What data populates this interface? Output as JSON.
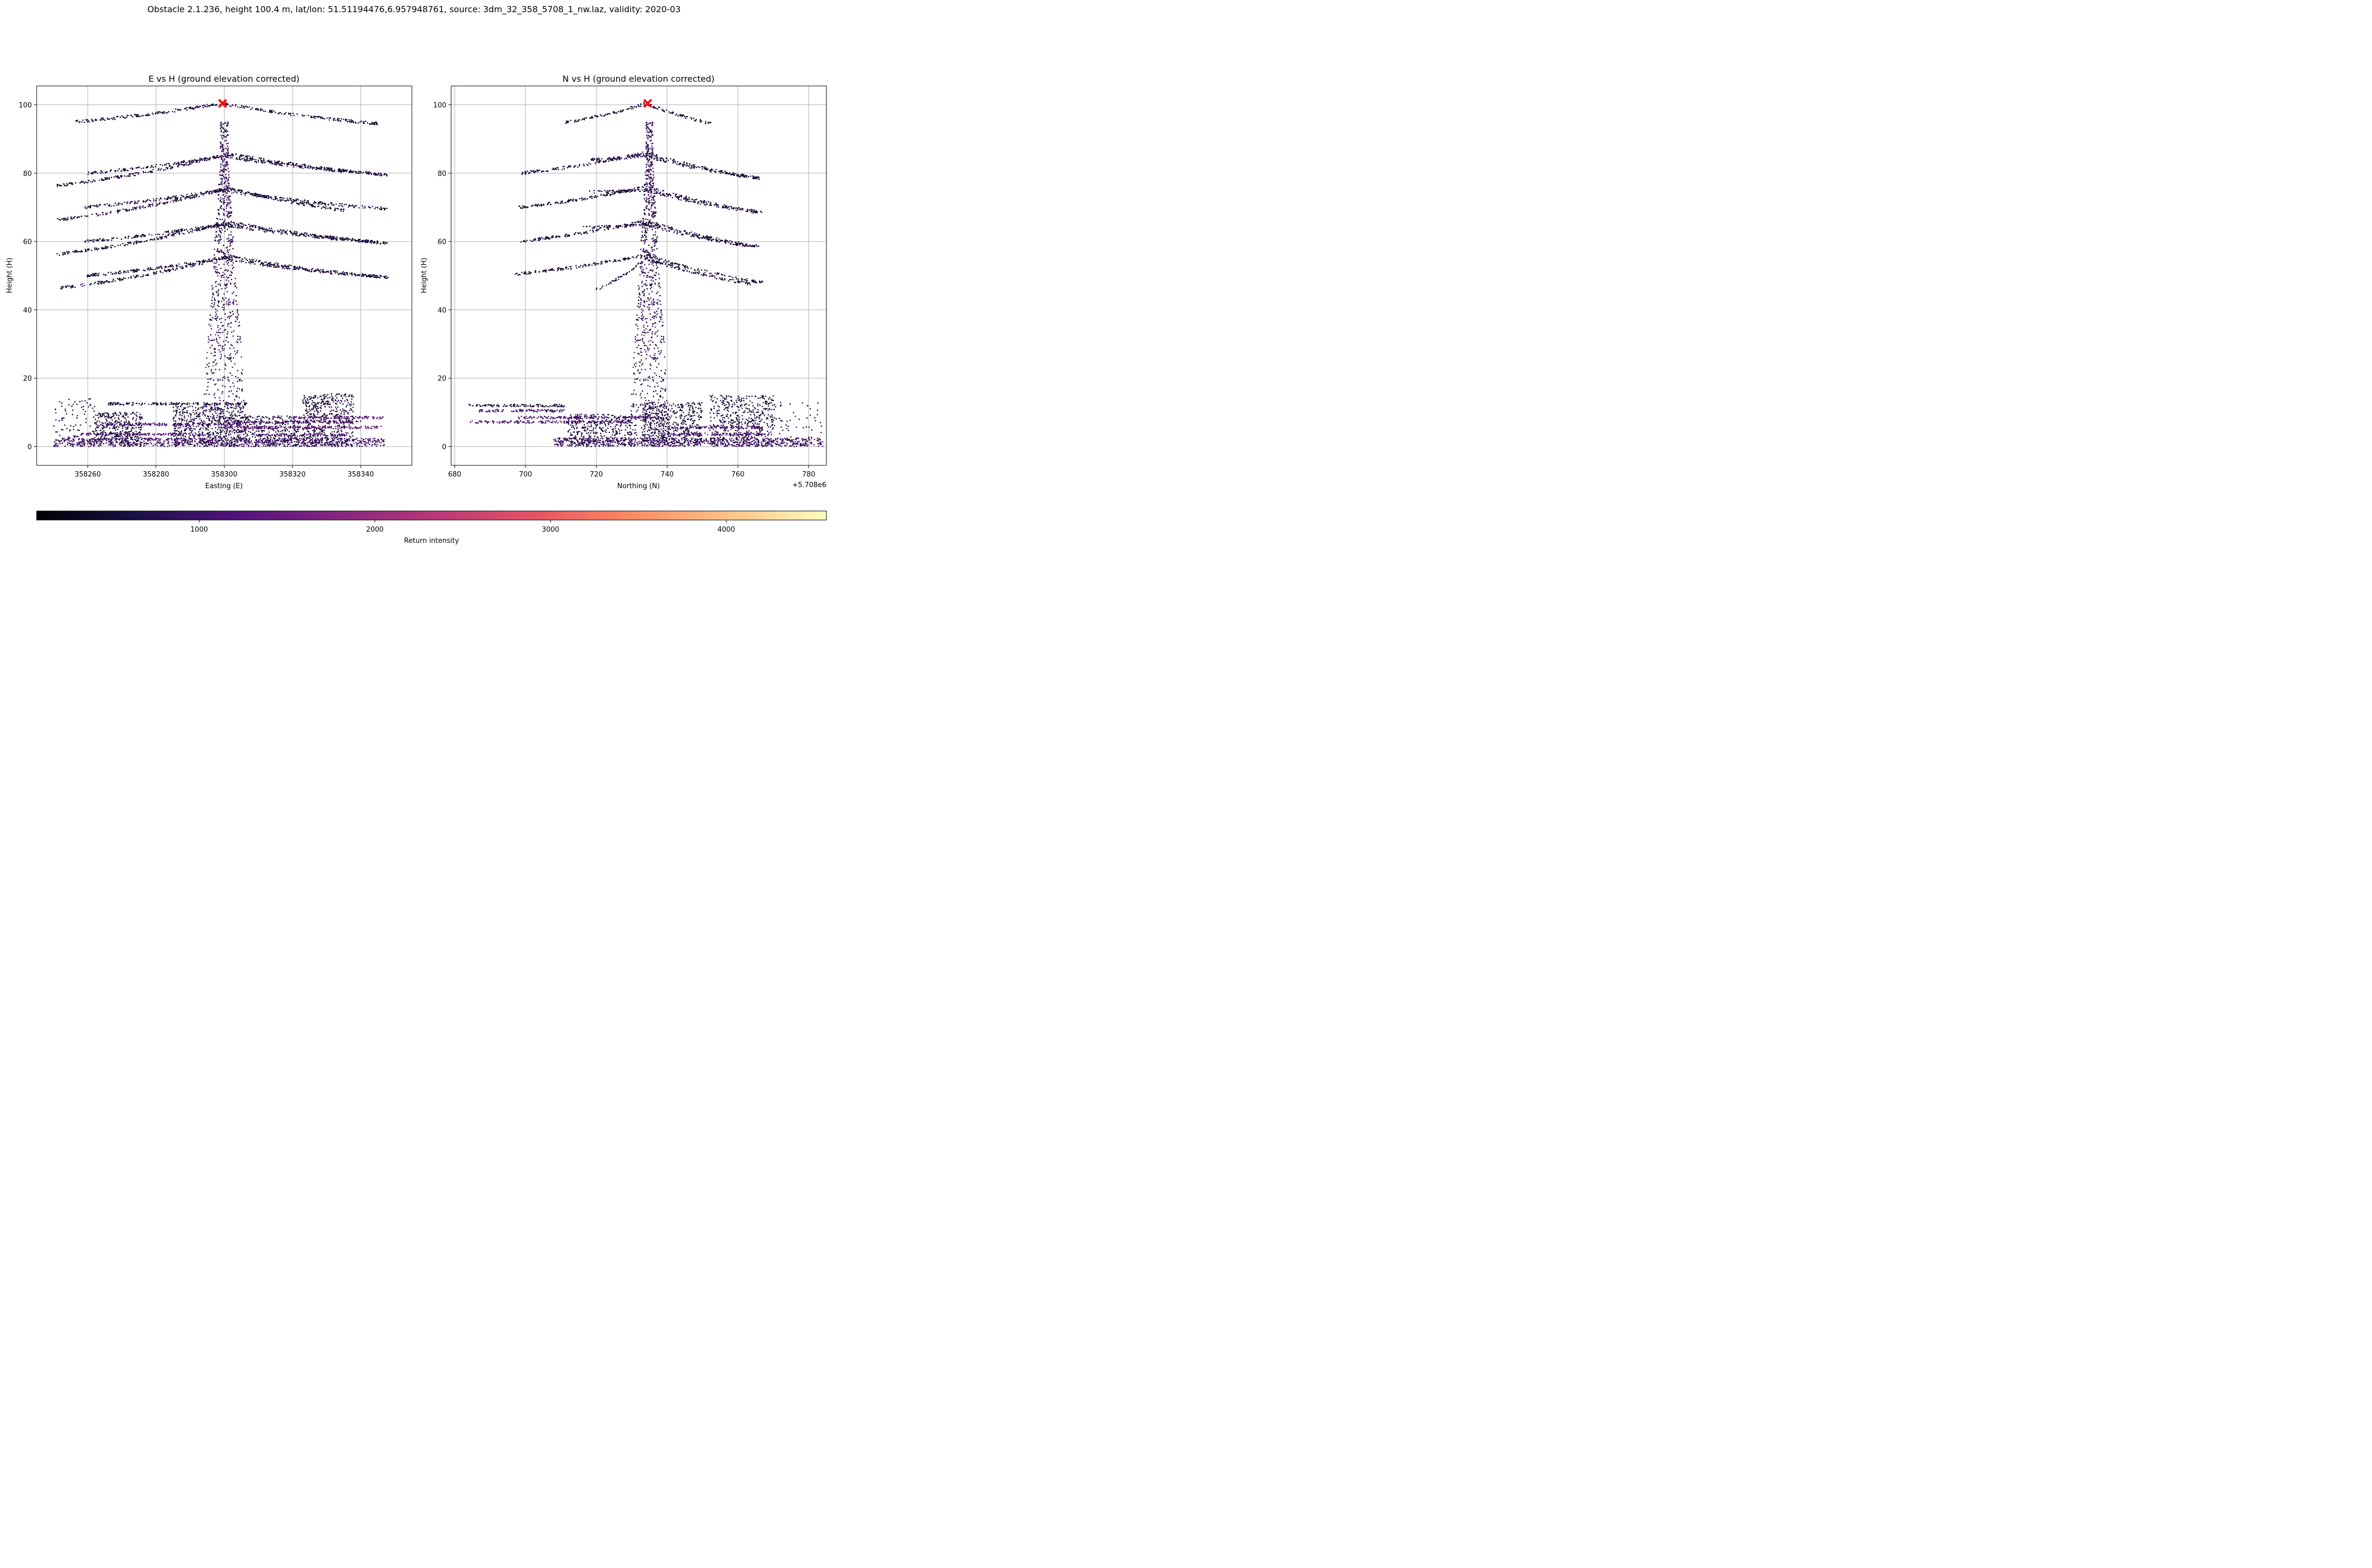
{
  "figure": {
    "suptitle": "Obstacle 2.1.236, height 100.4 m, lat/lon: 51.51194476,6.957948761, source: 3dm_32_358_5708_1_nw.laz, validity: 2020-03"
  },
  "chart_data": [
    {
      "type": "scatter",
      "title": "E vs H (ground elevation corrected)",
      "xlabel": "Easting (E)",
      "ylabel": "Height (H)",
      "xlim": [
        358245,
        358355
      ],
      "ylim": [
        -5.5,
        105.5
      ],
      "xticks": [
        358260,
        358280,
        358300,
        358320,
        358340
      ],
      "xtick_labels": [
        "358260",
        "358280",
        "358300",
        "358320",
        "358340"
      ],
      "yticks": [
        0,
        20,
        40,
        60,
        80,
        100
      ],
      "ytick_labels": [
        "0",
        "20",
        "40",
        "60",
        "80",
        "100"
      ],
      "grid": true,
      "obstacle_marker": {
        "x": 358299.5,
        "y": 100.4,
        "color": "#ff0000",
        "symbol": "x"
      },
      "tower": {
        "x_center": 358300,
        "base_half_width": 7,
        "top_half_width": 1.2,
        "y_range": [
          0,
          95
        ]
      },
      "cables": [
        {
          "x": [
            358251,
            358299,
            358348
          ],
          "y": [
            46.3,
            55,
            49.5
          ]
        },
        {
          "x": [
            358259,
            358302,
            358348
          ],
          "y": [
            50,
            55.5,
            49.5
          ]
        },
        {
          "x": [
            358251,
            358299,
            358348
          ],
          "y": [
            56.3,
            65,
            59.5
          ]
        },
        {
          "x": [
            358259,
            358302,
            358348
          ],
          "y": [
            60,
            65.5,
            59.5
          ]
        },
        {
          "x": [
            358251,
            358299,
            358348
          ],
          "y": [
            66.3,
            75,
            69.5
          ]
        },
        {
          "x": [
            358259,
            358302,
            358336
          ],
          "y": [
            70,
            75.5,
            69
          ]
        },
        {
          "x": [
            358251,
            358299,
            358348
          ],
          "y": [
            76.3,
            85,
            79.5
          ]
        },
        {
          "x": [
            358260,
            358302,
            358348
          ],
          "y": [
            80,
            85.5,
            79.5
          ]
        },
        {
          "x": [
            358256,
            358299,
            358345
          ],
          "y": [
            95,
            100.4,
            94.5
          ]
        }
      ],
      "vegetation": [
        {
          "x_range": [
            358250,
            358347
          ],
          "y_range": [
            0,
            2.5
          ],
          "n": 900,
          "ctype": "purple"
        },
        {
          "x_range": [
            358262,
            358276
          ],
          "y_range": [
            0,
            10
          ],
          "n": 360,
          "ctype": "dark"
        },
        {
          "x_range": [
            358285,
            358305
          ],
          "y_range": [
            0,
            12
          ],
          "n": 520,
          "ctype": "dark"
        },
        {
          "x_range": [
            358305,
            358322
          ],
          "y_range": [
            0,
            9
          ],
          "n": 300,
          "ctype": "dark"
        },
        {
          "x_range": [
            358323,
            358338
          ],
          "y_range": [
            0,
            15.5
          ],
          "n": 480,
          "ctype": "dark"
        },
        {
          "x_range": [
            358250,
            358262
          ],
          "y_range": [
            0,
            14
          ],
          "n": 90,
          "ctype": "dark"
        }
      ],
      "streaks": [
        {
          "x_range": [
            358266,
            358307
          ],
          "y": 12.5,
          "ctype": "dark"
        },
        {
          "x_range": [
            358265,
            358305
          ],
          "y": 6.5,
          "ctype": "purple"
        },
        {
          "x_range": [
            358320,
            358347
          ],
          "y": 8.5,
          "ctype": "magenta"
        },
        {
          "x_range": [
            358300,
            358340
          ],
          "y": 7.2,
          "ctype": "purple"
        },
        {
          "x_range": [
            358258,
            358297
          ],
          "y": 3.6,
          "ctype": "purple"
        },
        {
          "x_range": [
            358310,
            358336
          ],
          "y": 3.4,
          "ctype": "purple"
        },
        {
          "x_range": [
            358300,
            358346
          ],
          "y": 5.6,
          "ctype": "magenta"
        }
      ]
    },
    {
      "type": "scatter",
      "title": "N vs H (ground elevation corrected)",
      "xlabel": "Northing (N)",
      "ylabel": "Height (H)",
      "offset_text": "+5.708e6",
      "xlim": [
        5708679,
        5708785
      ],
      "ylim": [
        -5.5,
        105.5
      ],
      "xticks": [
        5708680,
        5708700,
        5708720,
        5708740,
        5708760,
        5708780
      ],
      "xtick_labels": [
        "680",
        "700",
        "720",
        "740",
        "760",
        "780"
      ],
      "yticks": [
        0,
        20,
        40,
        60,
        80,
        100
      ],
      "ytick_labels": [
        "0",
        "20",
        "40",
        "60",
        "80",
        "100"
      ],
      "grid": true,
      "obstacle_marker": {
        "x": 5708734.5,
        "y": 100.4,
        "color": "#ff0000",
        "symbol": "x"
      },
      "tower": {
        "x_center": 5708735,
        "base_half_width": 6,
        "top_half_width": 1.0,
        "y_range": [
          0,
          95
        ]
      },
      "cables": [
        {
          "x": [
            5708697,
            5708734,
            5708767
          ],
          "y": [
            50.5,
            56,
            48
          ]
        },
        {
          "x": [
            5708720,
            5708734,
            5708764
          ],
          "y": [
            46,
            55,
            47.5
          ]
        },
        {
          "x": [
            5708698,
            5708734,
            5708766
          ],
          "y": [
            60,
            66,
            58.5
          ]
        },
        {
          "x": [
            5708716,
            5708734,
            5708765
          ],
          "y": [
            64,
            65,
            58.5
          ]
        },
        {
          "x": [
            5708698,
            5708734,
            5708767
          ],
          "y": [
            70,
            76,
            68.5
          ]
        },
        {
          "x": [
            5708718,
            5708734,
            5708766
          ],
          "y": [
            74.5,
            75,
            68.5
          ]
        },
        {
          "x": [
            5708699,
            5708734,
            5708766
          ],
          "y": [
            80,
            86,
            78.5
          ]
        },
        {
          "x": [
            5708718,
            5708734,
            5708766
          ],
          "y": [
            84,
            85,
            78.5
          ]
        },
        {
          "x": [
            5708711,
            5708734,
            5708753
          ],
          "y": [
            94.8,
            100.4,
            94.5
          ]
        }
      ],
      "vegetation": [
        {
          "x_range": [
            5708708,
            5708784
          ],
          "y_range": [
            0,
            2.5
          ],
          "n": 750,
          "ctype": "purple"
        },
        {
          "x_range": [
            5708712,
            5708730
          ],
          "y_range": [
            0,
            9.5
          ],
          "n": 320,
          "ctype": "dark"
        },
        {
          "x_range": [
            5708733,
            5708750
          ],
          "y_range": [
            0,
            13
          ],
          "n": 480,
          "ctype": "dark"
        },
        {
          "x_range": [
            5708752,
            5708770
          ],
          "y_range": [
            0,
            15
          ],
          "n": 480,
          "ctype": "dark"
        },
        {
          "x_range": [
            5708770,
            5708784
          ],
          "y_range": [
            0,
            13
          ],
          "n": 60,
          "ctype": "dark"
        }
      ],
      "streaks": [
        {
          "x_range": [
            5708684,
            5708711
          ],
          "y": 12,
          "ctype": "dark"
        },
        {
          "x_range": [
            5708687,
            5708711
          ],
          "y": 10.5,
          "ctype": "purple"
        },
        {
          "x_range": [
            5708684,
            5708730
          ],
          "y": 7.2,
          "ctype": "purple"
        },
        {
          "x_range": [
            5708698,
            5708740
          ],
          "y": 8.5,
          "ctype": "purple"
        },
        {
          "x_range": [
            5708740,
            5708767
          ],
          "y": 5.6,
          "ctype": "purple"
        },
        {
          "x_range": [
            5708740,
            5708767
          ],
          "y": 3.6,
          "ctype": "purple"
        }
      ]
    }
  ],
  "colorbar": {
    "label": "Return intensity",
    "range": [
      75,
      4570
    ],
    "colormap": "magma",
    "ticks": [
      1000,
      2000,
      3000,
      4000
    ],
    "tick_labels": [
      "1000",
      "2000",
      "3000",
      "4000"
    ]
  },
  "colors": {
    "marker": "#ff0000",
    "grid": "#b0b0b0",
    "point_dark": "#0f0a2a",
    "point_purple": "#4a1470",
    "point_magenta": "#6b1f7d"
  }
}
